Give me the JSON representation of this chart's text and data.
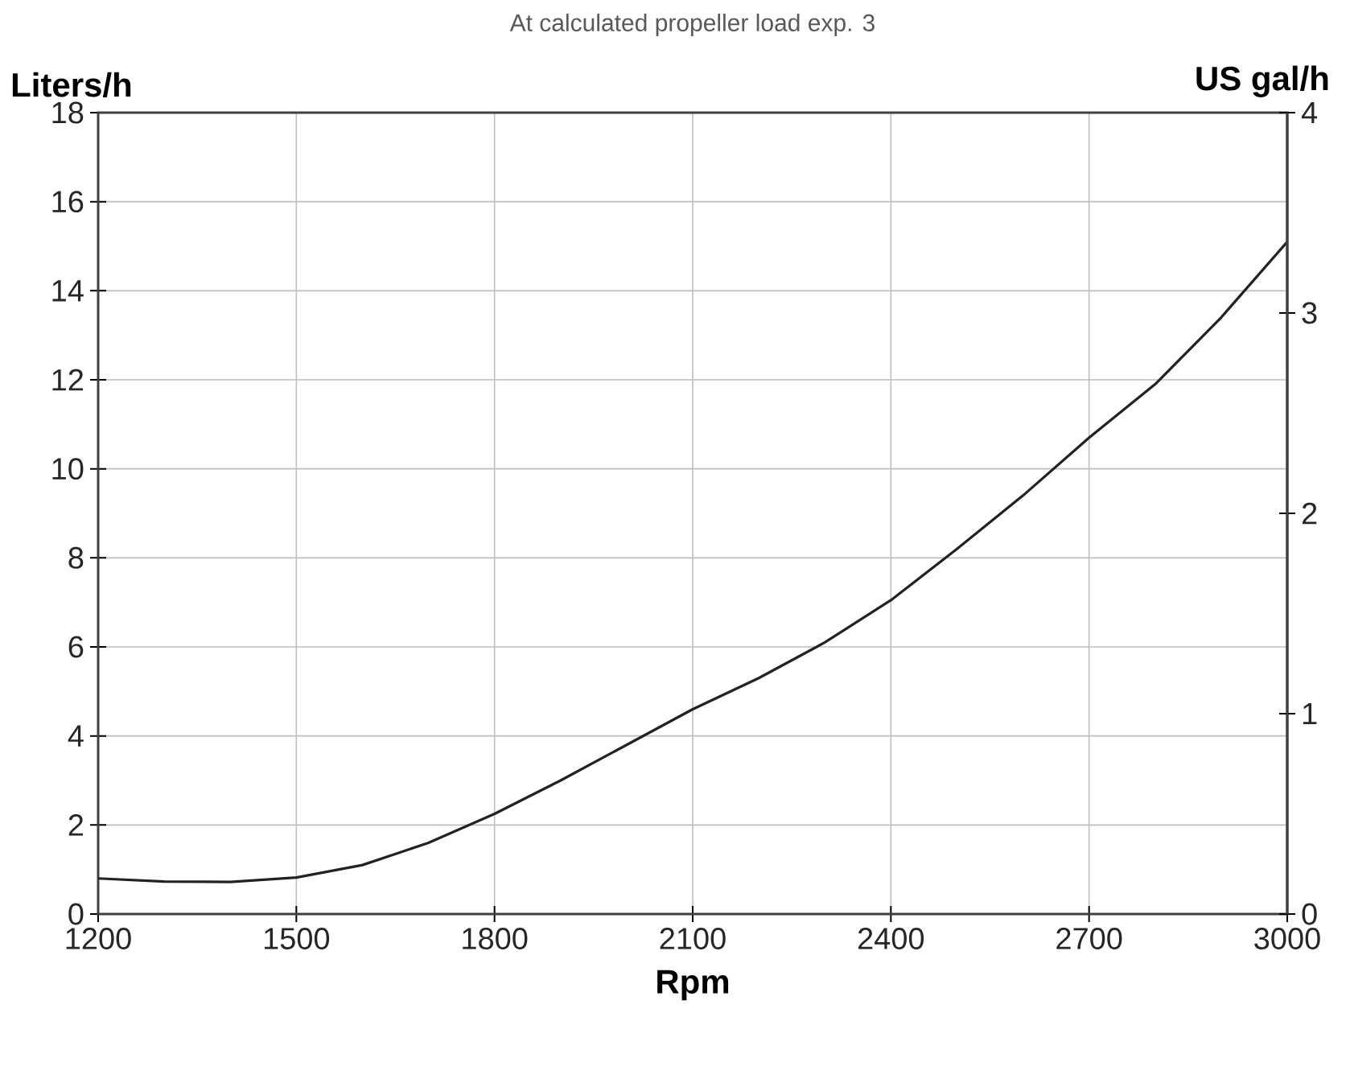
{
  "chart_data": {
    "type": "line",
    "title": "At calculated propeller load exp. 3",
    "xlabel": "Rpm",
    "ylabel": "Liters/h",
    "y2label": "US gal/h",
    "x": [
      1200,
      1300,
      1400,
      1500,
      1600,
      1700,
      1800,
      1900,
      2000,
      2100,
      2200,
      2300,
      2400,
      2500,
      2600,
      2700,
      2800,
      2900,
      3000
    ],
    "series": [
      {
        "color": "#222222",
        "values": [
          0.8,
          0.73,
          0.72,
          0.82,
          1.1,
          1.6,
          2.25,
          3.0,
          3.8,
          4.6,
          5.3,
          6.1,
          7.05,
          8.2,
          9.4,
          10.7,
          11.9,
          13.4,
          15.1
        ]
      }
    ],
    "xlim": [
      1200,
      3000
    ],
    "xticks": [
      1200,
      1500,
      1800,
      2100,
      2400,
      2700,
      3000
    ],
    "ylim": [
      0,
      18
    ],
    "yticks": [
      0,
      2,
      4,
      6,
      8,
      10,
      12,
      14,
      16,
      18
    ],
    "y2lim": [
      0,
      4
    ],
    "y2ticks": [
      0,
      1,
      2,
      3,
      4
    ],
    "grid": true,
    "line_style": "solid"
  }
}
